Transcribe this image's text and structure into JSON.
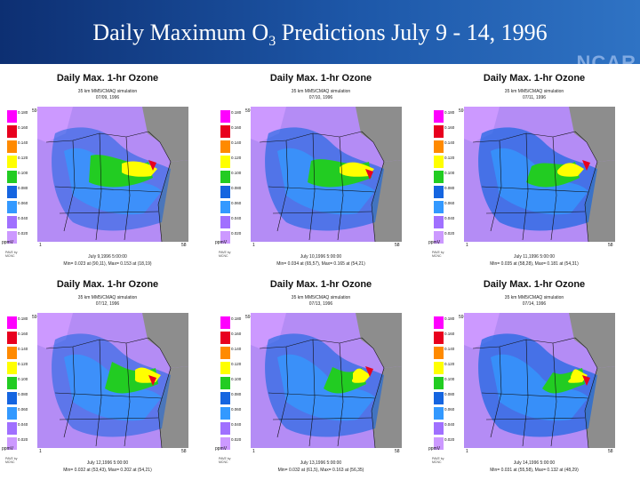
{
  "slide": {
    "title_main": "Daily Maximum O",
    "title_sub": "3",
    "title_tail": " Predictions July 9 - 14, 1996",
    "logo_text": "NCAR",
    "header_color": "#1d57a8"
  },
  "legend": {
    "levels": [
      "0.180",
      "0.160",
      "0.140",
      "0.120",
      "0.100",
      "0.080",
      "0.060",
      "0.040",
      "0.020"
    ],
    "colors": [
      "#ff00ff",
      "#e8001e",
      "#ff8a00",
      "#ffff00",
      "#22cc22",
      "#1565e0",
      "#3399ff",
      "#a070ff",
      "#cc99ff"
    ],
    "units": "ppmV",
    "axis_label": "PAVE\nby\nMCNC"
  },
  "panels": [
    {
      "title": "Daily Max. 1-hr Ozone",
      "subtitle": "35 km MM5/CMAQ simulation",
      "date": "07/09, 1996",
      "footer_time": "July 9,1996 5:00:00",
      "footer_stats": "Min= 0.023 at (90,11), Max= 0.153 at (18,19)",
      "grid_top": "59",
      "grid_left": "1",
      "grid_right": "58"
    },
    {
      "title": "Daily Max. 1-hr Ozone",
      "subtitle": "35 km MM5/CMAQ simulation",
      "date": "07/10, 1996",
      "footer_time": "July 10,1996 5:00:00",
      "footer_stats": "Min= 0.034 at (65,57), Max= 0.165 at (54,21)",
      "grid_top": "59",
      "grid_left": "1",
      "grid_right": "58"
    },
    {
      "title": "Daily Max. 1-hr Ozone",
      "subtitle": "35 km MM5/CMAQ simulation",
      "date": "07/11, 1996",
      "footer_time": "July 11,1996 5:00:00",
      "footer_stats": "Min= 0.035 at (58,28), Max= 0.181 at (54,31)",
      "grid_top": "59",
      "grid_left": "1",
      "grid_right": "58"
    },
    {
      "title": "Daily Max. 1-hr Ozone",
      "subtitle": "35 km MM5/CMAQ simulation",
      "date": "07/12, 1996",
      "footer_time": "July 12,1996 5:00:00",
      "footer_stats": "Min= 0.032 at (53,43), Max= 0.202 at (54,21)",
      "grid_top": "59",
      "grid_left": "1",
      "grid_right": "58"
    },
    {
      "title": "Daily Max. 1-hr Ozone",
      "subtitle": "35 km MM5/CMAQ simulation",
      "date": "07/13, 1996",
      "footer_time": "July 13,1996 5:00:00",
      "footer_stats": "Min= 0.032 at (61,5), Max= 0.163 at (56,35)",
      "grid_top": "59",
      "grid_left": "1",
      "grid_right": "58"
    },
    {
      "title": "Daily Max. 1-hr Ozone",
      "subtitle": "35 km MM5/CMAQ simulation",
      "date": "07/14, 1996",
      "footer_time": "July 14,1996 5:00:00",
      "footer_stats": "Min= 0.031 at (55,58), Max= 0.132 at (48,29)",
      "grid_top": "59",
      "grid_left": "1",
      "grid_right": "58"
    }
  ]
}
